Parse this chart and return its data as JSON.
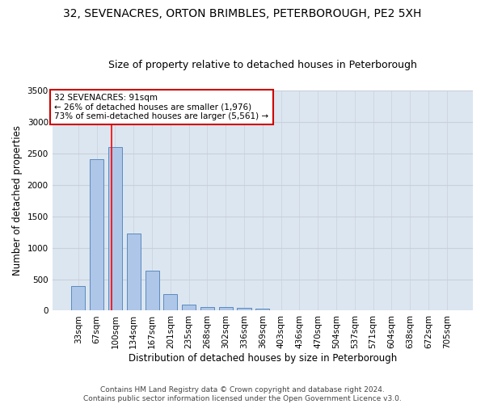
{
  "title1": "32, SEVENACRES, ORTON BRIMBLES, PETERBOROUGH, PE2 5XH",
  "title2": "Size of property relative to detached houses in Peterborough",
  "xlabel": "Distribution of detached houses by size in Peterborough",
  "ylabel": "Number of detached properties",
  "categories": [
    "33sqm",
    "67sqm",
    "100sqm",
    "134sqm",
    "167sqm",
    "201sqm",
    "235sqm",
    "268sqm",
    "302sqm",
    "336sqm",
    "369sqm",
    "403sqm",
    "436sqm",
    "470sqm",
    "504sqm",
    "537sqm",
    "571sqm",
    "604sqm",
    "638sqm",
    "672sqm",
    "705sqm"
  ],
  "values": [
    390,
    2400,
    2600,
    1230,
    640,
    260,
    95,
    60,
    60,
    45,
    35,
    0,
    0,
    0,
    0,
    0,
    0,
    0,
    0,
    0,
    0
  ],
  "bar_color": "#aec6e8",
  "bar_edge_color": "#5a8abf",
  "bar_width": 0.75,
  "annotation_text": "32 SEVENACRES: 91sqm\n← 26% of detached houses are smaller (1,976)\n73% of semi-detached houses are larger (5,561) →",
  "annotation_box_color": "#ffffff",
  "annotation_box_edge": "#cc0000",
  "red_line_x": 1.82,
  "ylim": [
    0,
    3500
  ],
  "yticks": [
    0,
    500,
    1000,
    1500,
    2000,
    2500,
    3000,
    3500
  ],
  "grid_color": "#c8d0dc",
  "bg_color": "#dce6f0",
  "footer1": "Contains HM Land Registry data © Crown copyright and database right 2024.",
  "footer2": "Contains public sector information licensed under the Open Government Licence v3.0.",
  "title_fontsize": 10,
  "subtitle_fontsize": 9,
  "axis_label_fontsize": 8.5,
  "tick_fontsize": 7.5,
  "annotation_fontsize": 7.5,
  "footer_fontsize": 6.5
}
